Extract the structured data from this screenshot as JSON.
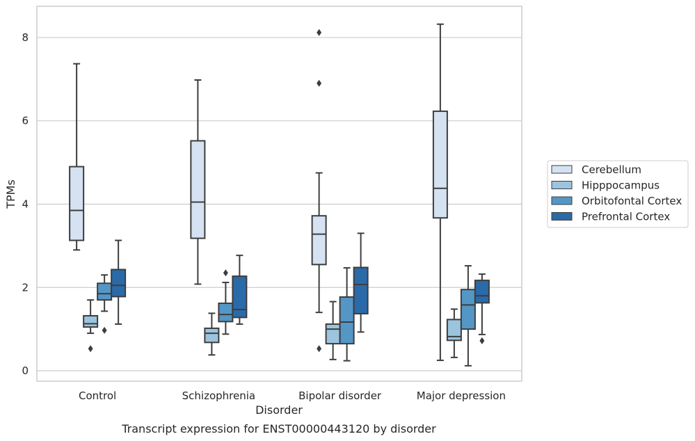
{
  "caption": "Transcript expression for ENST00000443120 by disorder",
  "chart_data": {
    "type": "box",
    "xlabel": "Disorder",
    "ylabel": "TPMs",
    "ylim": [
      -0.25,
      8.75
    ],
    "yticks": [
      0,
      2,
      4,
      6,
      8
    ],
    "categories": [
      "Control",
      "Schizophrenia",
      "Bipolar disorder",
      "Major depression"
    ],
    "grid": "horizontal",
    "legend_position": "right",
    "series": [
      {
        "name": "Cerebellum",
        "color": "#d4e2f1",
        "boxes": [
          {
            "whislo": 2.9,
            "q1": 3.13,
            "med": 3.85,
            "q3": 4.9,
            "whishi": 7.37,
            "fliers": []
          },
          {
            "whislo": 2.08,
            "q1": 3.18,
            "med": 4.05,
            "q3": 5.52,
            "whishi": 6.98,
            "fliers": []
          },
          {
            "whislo": 1.4,
            "q1": 2.55,
            "med": 3.28,
            "q3": 3.72,
            "whishi": 4.75,
            "fliers": [
              0.53,
              6.9,
              8.12
            ]
          },
          {
            "whislo": 0.25,
            "q1": 3.67,
            "med": 4.38,
            "q3": 6.23,
            "whishi": 8.32,
            "fliers": []
          }
        ]
      },
      {
        "name": "Hipppocampus",
        "color": "#9cc4df",
        "boxes": [
          {
            "whislo": 0.9,
            "q1": 1.05,
            "med": 1.13,
            "q3": 1.32,
            "whishi": 1.7,
            "fliers": [
              0.53
            ]
          },
          {
            "whislo": 0.38,
            "q1": 0.68,
            "med": 0.9,
            "q3": 1.02,
            "whishi": 1.38,
            "fliers": []
          },
          {
            "whislo": 0.27,
            "q1": 0.65,
            "med": 1.0,
            "q3": 1.12,
            "whishi": 1.66,
            "fliers": []
          },
          {
            "whislo": 0.32,
            "q1": 0.73,
            "med": 0.82,
            "q3": 1.23,
            "whishi": 1.48,
            "fliers": []
          }
        ]
      },
      {
        "name": "Orbitofontal Cortex",
        "color": "#5497c6",
        "boxes": [
          {
            "whislo": 1.43,
            "q1": 1.7,
            "med": 1.85,
            "q3": 2.1,
            "whishi": 2.3,
            "fliers": [
              0.97
            ]
          },
          {
            "whislo": 0.88,
            "q1": 1.18,
            "med": 1.35,
            "q3": 1.62,
            "whishi": 2.12,
            "fliers": [
              2.35
            ]
          },
          {
            "whislo": 0.24,
            "q1": 0.65,
            "med": 1.17,
            "q3": 1.77,
            "whishi": 2.47,
            "fliers": []
          },
          {
            "whislo": 0.12,
            "q1": 1.0,
            "med": 1.58,
            "q3": 1.95,
            "whishi": 2.52,
            "fliers": []
          }
        ]
      },
      {
        "name": "Prefrontal Cortex",
        "color": "#2b6aa8",
        "boxes": [
          {
            "whislo": 1.12,
            "q1": 1.78,
            "med": 2.05,
            "q3": 2.43,
            "whishi": 3.13,
            "fliers": []
          },
          {
            "whislo": 1.12,
            "q1": 1.28,
            "med": 1.47,
            "q3": 2.27,
            "whishi": 2.77,
            "fliers": []
          },
          {
            "whislo": 0.93,
            "q1": 1.37,
            "med": 2.07,
            "q3": 2.48,
            "whishi": 3.3,
            "fliers": []
          },
          {
            "whislo": 0.87,
            "q1": 1.63,
            "med": 1.8,
            "q3": 2.17,
            "whishi": 2.32,
            "fliers": [
              0.72
            ]
          }
        ]
      }
    ]
  }
}
